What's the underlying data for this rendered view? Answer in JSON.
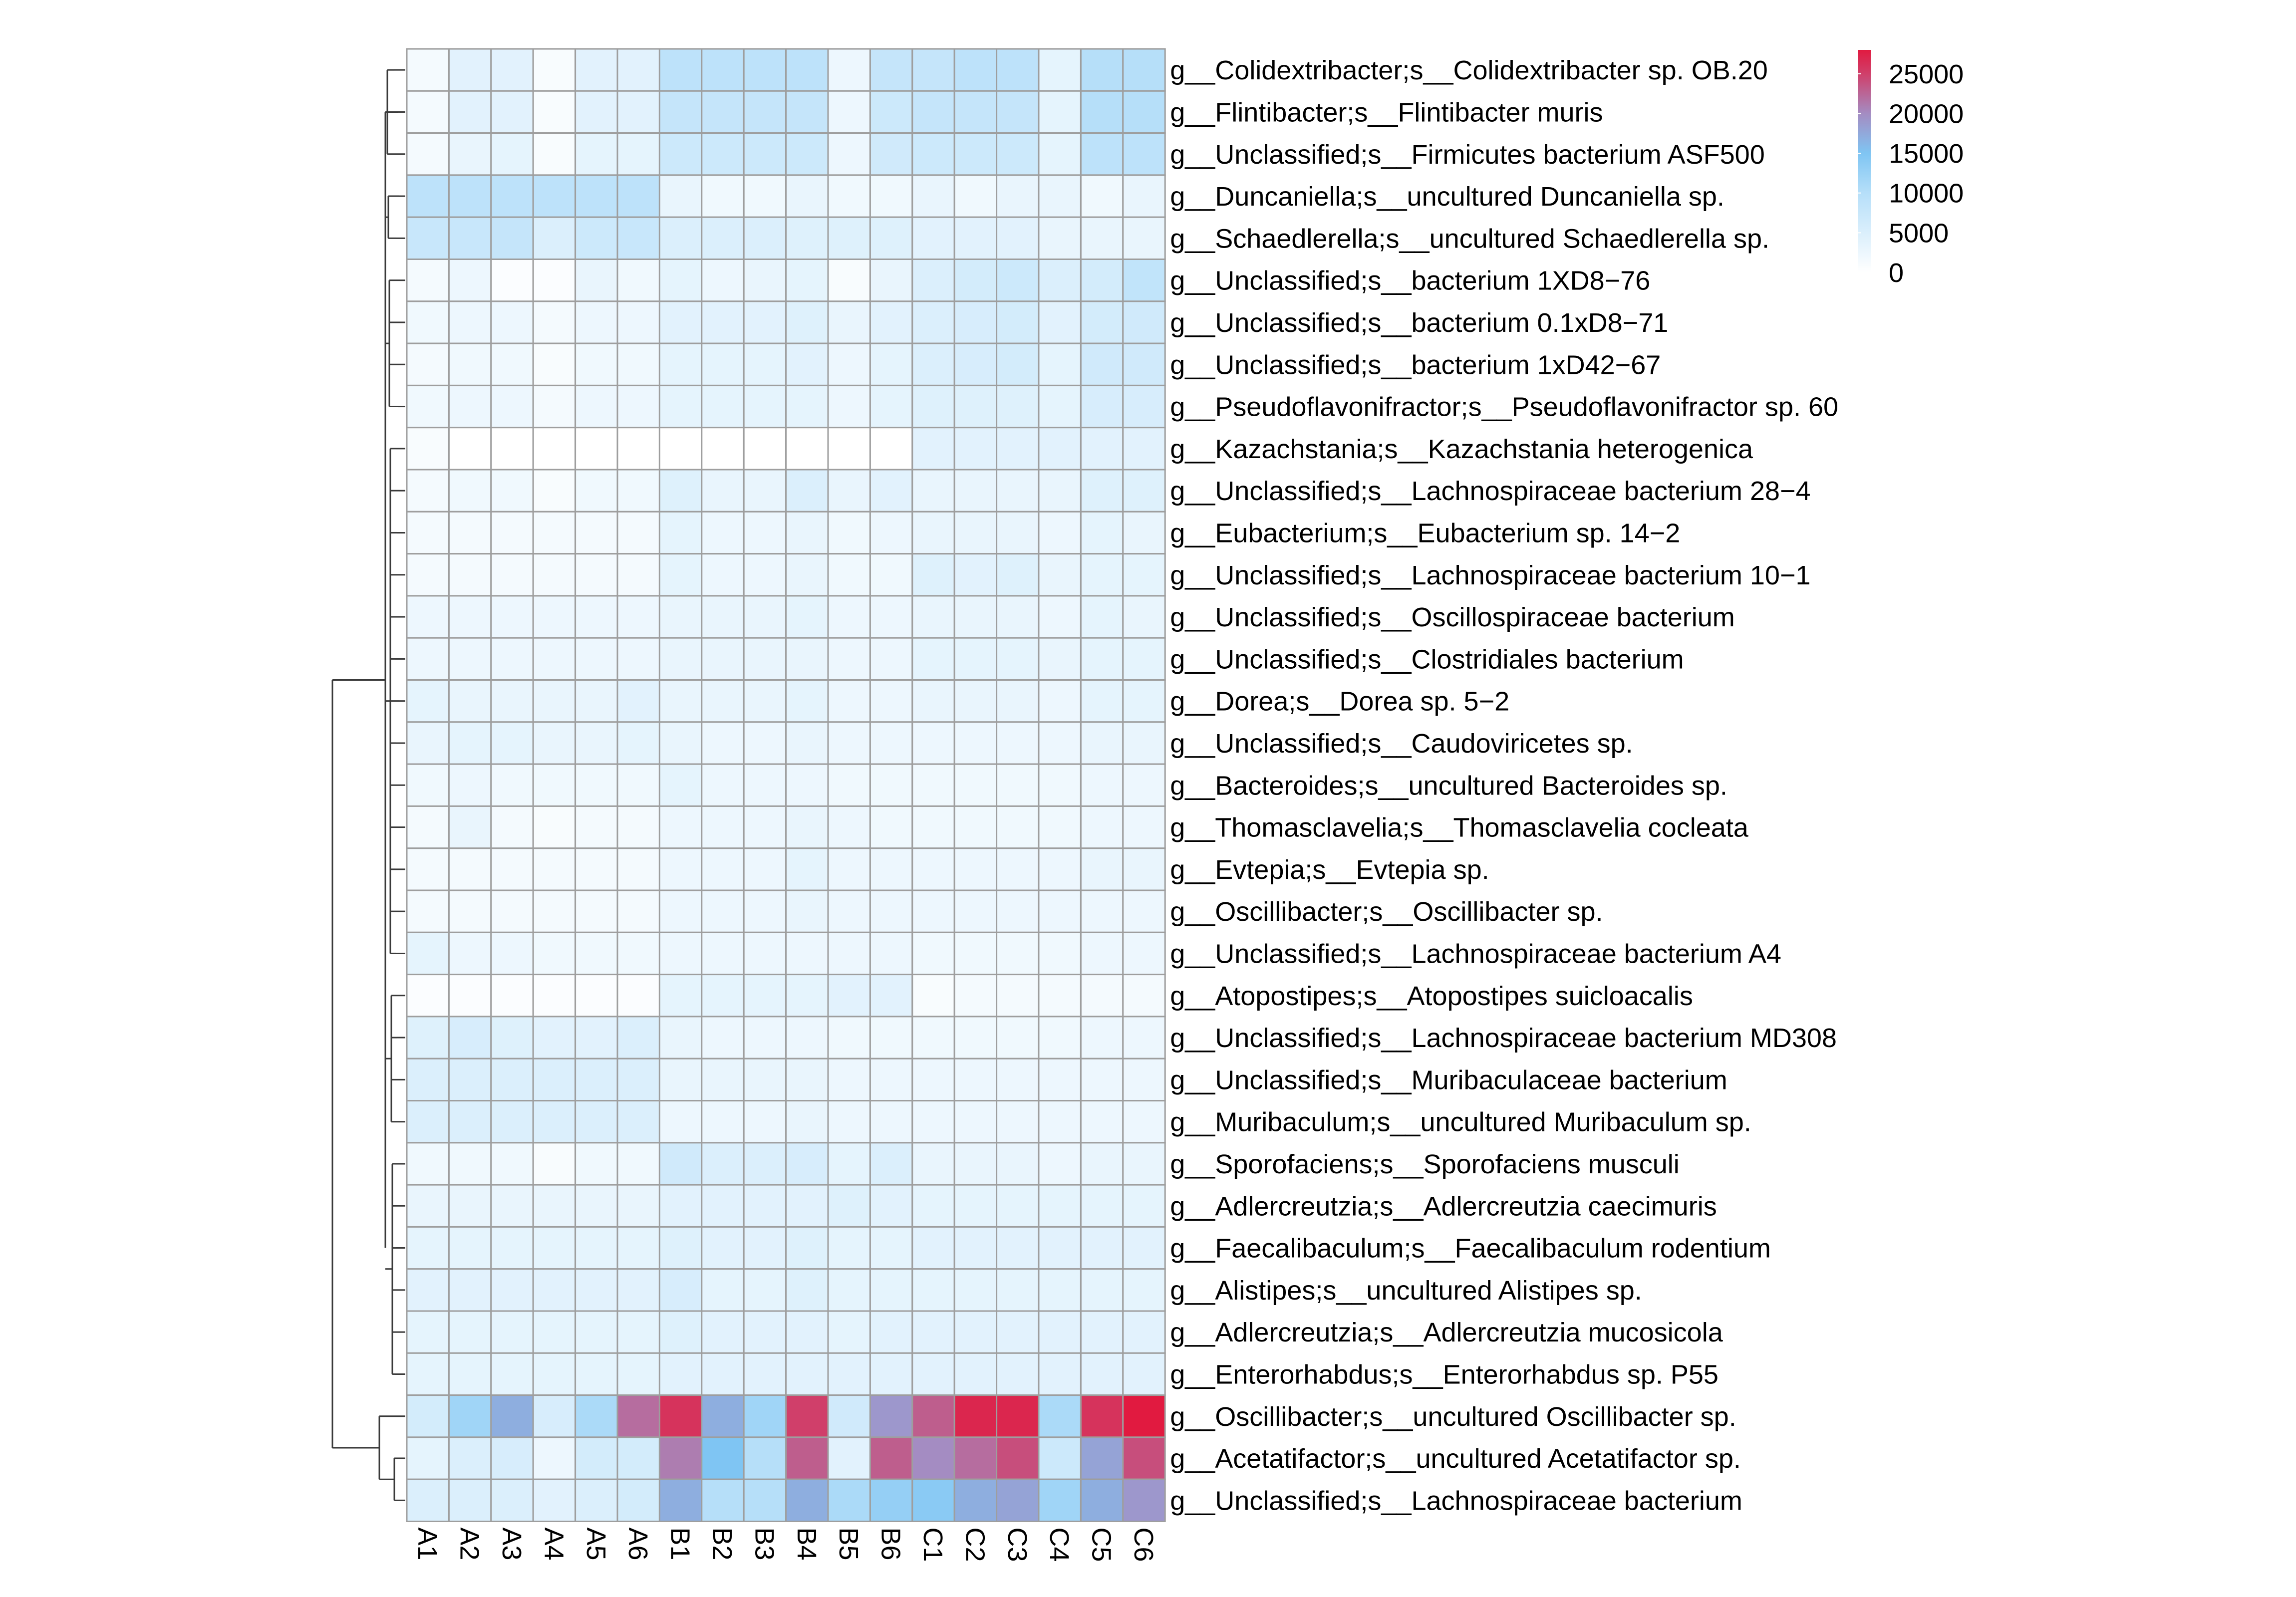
{
  "chart_data": {
    "type": "heatmap",
    "title": "",
    "xlabel": "",
    "ylabel": "",
    "columns": [
      "A1",
      "A2",
      "A3",
      "A4",
      "A5",
      "A6",
      "B1",
      "B2",
      "B3",
      "B4",
      "B5",
      "B6",
      "C1",
      "C2",
      "C3",
      "C4",
      "C5",
      "C6"
    ],
    "rows": [
      "g__Colidextribacter;s__Colidextribacter sp. OB.20",
      "g__Flintibacter;s__Flintibacter muris",
      "g__Unclassified;s__Firmicutes bacterium ASF500",
      "g__Duncaniella;s__uncultured Duncaniella sp.",
      "g__Schaedlerella;s__uncultured Schaedlerella sp.",
      "g__Unclassified;s__bacterium 1XD8−76",
      "g__Unclassified;s__bacterium 0.1xD8−71",
      "g__Unclassified;s__bacterium 1xD42−67",
      "g__Pseudoflavonifractor;s__Pseudoflavonifractor sp. 60",
      "g__Kazachstania;s__Kazachstania heterogenica",
      "g__Unclassified;s__Lachnospiraceae bacterium 28−4",
      "g__Eubacterium;s__Eubacterium sp. 14−2",
      "g__Unclassified;s__Lachnospiraceae bacterium 10−1",
      "g__Unclassified;s__Oscillospiraceae bacterium",
      "g__Unclassified;s__Clostridiales bacterium",
      "g__Dorea;s__Dorea sp. 5−2",
      "g__Unclassified;s__Caudoviricetes sp.",
      "g__Bacteroides;s__uncultured Bacteroides sp.",
      "g__Thomasclavelia;s__Thomasclavelia cocleata",
      "g__Evtepia;s__Evtepia sp.",
      "g__Oscillibacter;s__Oscillibacter sp.",
      "g__Unclassified;s__Lachnospiraceae bacterium A4",
      "g__Atopostipes;s__Atopostipes suicloacalis",
      "g__Unclassified;s__Lachnospiraceae bacterium MD308",
      "g__Unclassified;s__Muribaculaceae bacterium",
      "g__Muribaculum;s__uncultured Muribaculum sp.",
      "g__Sporofaciens;s__Sporofaciens musculi",
      "g__Adlercreutzia;s__Adlercreutzia caecimuris",
      "g__Faecalibaculum;s__Faecalibaculum rodentium",
      "g__Alistipes;s__uncultured Alistipes sp.",
      "g__Adlercreutzia;s__Adlercreutzia mucosicola",
      "g__Enterorhabdus;s__Enterorhabdus sp. P55",
      "g__Oscillibacter;s__uncultured Oscillibacter sp.",
      "g__Acetatifactor;s__uncultured Acetatifactor sp.",
      "g__Unclassified;s__Lachnospiraceae bacterium"
    ],
    "values": [
      [
        1500,
        4000,
        4000,
        1000,
        4000,
        4000,
        9000,
        9000,
        9000,
        9000,
        2500,
        8000,
        8000,
        9000,
        9000,
        3500,
        10000,
        10000
      ],
      [
        1500,
        4000,
        4000,
        1000,
        4000,
        4000,
        8000,
        8000,
        8000,
        8000,
        2500,
        7000,
        8000,
        8000,
        8000,
        3500,
        10000,
        10000
      ],
      [
        1500,
        3000,
        3500,
        1000,
        3500,
        3500,
        7000,
        7000,
        7000,
        7000,
        2500,
        6500,
        7000,
        7000,
        7000,
        3500,
        9000,
        9000
      ],
      [
        9000,
        9000,
        9000,
        9000,
        9000,
        9000,
        3000,
        2000,
        2000,
        3000,
        2000,
        2000,
        3000,
        2000,
        3000,
        3000,
        2000,
        3000
      ],
      [
        7500,
        7500,
        8000,
        5000,
        7000,
        7500,
        5000,
        5000,
        5000,
        4500,
        4500,
        4500,
        4000,
        4000,
        4000,
        3000,
        3000,
        3000
      ],
      [
        1500,
        2500,
        500,
        500,
        3000,
        2000,
        3500,
        2500,
        3000,
        3500,
        1000,
        3000,
        5000,
        6000,
        7000,
        5000,
        6000,
        8500
      ],
      [
        2000,
        2500,
        2500,
        1500,
        2500,
        2500,
        4000,
        4000,
        4000,
        4500,
        3000,
        4000,
        5000,
        5500,
        6000,
        4000,
        6000,
        6500
      ],
      [
        1500,
        2000,
        2000,
        1000,
        2000,
        2000,
        3500,
        3500,
        3500,
        4000,
        2500,
        3500,
        5000,
        5500,
        6000,
        3500,
        6500,
        6500
      ],
      [
        2000,
        2500,
        2500,
        1500,
        2500,
        2500,
        3500,
        3500,
        3500,
        3500,
        2500,
        3500,
        4500,
        4500,
        4500,
        3500,
        5500,
        5500
      ],
      [
        1000,
        0,
        0,
        0,
        0,
        0,
        0,
        0,
        0,
        0,
        0,
        0,
        4000,
        4000,
        4000,
        4000,
        4000,
        4000
      ],
      [
        1500,
        2000,
        2000,
        1000,
        2000,
        2000,
        4500,
        3000,
        3000,
        5000,
        3000,
        4000,
        3000,
        3000,
        3000,
        3000,
        4500,
        4500
      ],
      [
        1500,
        1500,
        1500,
        1500,
        1500,
        1500,
        3500,
        2500,
        2500,
        3000,
        2000,
        2500,
        3000,
        3000,
        3000,
        2500,
        3500,
        3000
      ],
      [
        1500,
        1500,
        1500,
        1500,
        1500,
        1500,
        3500,
        2500,
        2500,
        3000,
        2000,
        2000,
        4500,
        4000,
        4500,
        3000,
        3500,
        3500
      ],
      [
        2500,
        2500,
        2500,
        2500,
        2500,
        2500,
        3000,
        3000,
        3000,
        3500,
        2500,
        2500,
        3000,
        3000,
        3000,
        2500,
        3500,
        3000
      ],
      [
        2500,
        2500,
        2500,
        2500,
        2500,
        2500,
        3000,
        3000,
        3000,
        3000,
        2500,
        2500,
        3500,
        3500,
        3500,
        3000,
        3500,
        3500
      ],
      [
        3500,
        3000,
        3000,
        3000,
        3000,
        4000,
        3000,
        3000,
        3000,
        3500,
        2500,
        2500,
        3000,
        3000,
        3000,
        2500,
        3500,
        3500
      ],
      [
        3000,
        3500,
        3500,
        3000,
        3000,
        3500,
        3000,
        2500,
        2500,
        3000,
        2500,
        2500,
        2500,
        2500,
        2500,
        2500,
        3000,
        3000
      ],
      [
        2000,
        2500,
        2000,
        2000,
        2000,
        2000,
        3500,
        2500,
        2500,
        2500,
        2000,
        2000,
        2000,
        2000,
        2000,
        2000,
        2500,
        2500
      ],
      [
        1500,
        3000,
        1500,
        1000,
        1500,
        1500,
        2500,
        2500,
        2500,
        3000,
        2500,
        2000,
        2000,
        2000,
        2000,
        2000,
        2500,
        2500
      ],
      [
        1500,
        1500,
        1500,
        1500,
        1500,
        1500,
        2500,
        2500,
        2500,
        3500,
        2500,
        2500,
        2500,
        2500,
        2500,
        2500,
        3000,
        3000
      ],
      [
        1500,
        1500,
        1500,
        1500,
        1500,
        1500,
        2500,
        2500,
        2500,
        3000,
        2500,
        2500,
        2500,
        2500,
        2500,
        2500,
        2500,
        2500
      ],
      [
        3500,
        2500,
        2500,
        2000,
        2000,
        2000,
        2500,
        2500,
        2500,
        2500,
        2500,
        2500,
        2000,
        2000,
        2000,
        2000,
        2500,
        2500
      ],
      [
        500,
        500,
        500,
        500,
        500,
        500,
        3500,
        3500,
        3500,
        3500,
        4000,
        4000,
        1000,
        1500,
        1500,
        1500,
        1500,
        1500
      ],
      [
        4500,
        5500,
        4500,
        4000,
        4000,
        5000,
        3000,
        2500,
        2500,
        2500,
        2000,
        2000,
        2000,
        2000,
        2000,
        2000,
        2500,
        2500
      ],
      [
        5000,
        5000,
        5000,
        5000,
        5000,
        5000,
        3000,
        3000,
        3000,
        3000,
        2500,
        2500,
        2500,
        2500,
        2500,
        2500,
        2500,
        2500
      ],
      [
        5000,
        5000,
        5000,
        5000,
        5000,
        5000,
        2500,
        2500,
        2500,
        3000,
        2500,
        2500,
        2500,
        2500,
        2500,
        2500,
        2500,
        2500
      ],
      [
        2000,
        2000,
        2000,
        1000,
        2000,
        2000,
        6500,
        5000,
        5000,
        5500,
        3500,
        5000,
        3000,
        3000,
        3000,
        2500,
        3000,
        3000
      ],
      [
        3000,
        3000,
        3000,
        3000,
        3000,
        3000,
        4000,
        4000,
        4000,
        4000,
        4500,
        4000,
        3500,
        3500,
        3500,
        3500,
        3500,
        3500
      ],
      [
        3500,
        3500,
        3500,
        3500,
        3500,
        3500,
        4500,
        4000,
        4000,
        4500,
        3500,
        3500,
        4000,
        4000,
        4000,
        4000,
        4000,
        4000
      ],
      [
        4000,
        4000,
        4000,
        4000,
        4000,
        4000,
        5500,
        3500,
        3500,
        4500,
        3500,
        3500,
        3500,
        3500,
        3500,
        3500,
        3500,
        3500
      ],
      [
        3500,
        3500,
        3500,
        3500,
        3500,
        3500,
        4500,
        4000,
        4000,
        4000,
        3500,
        4000,
        4000,
        4000,
        4000,
        4000,
        4000,
        4000
      ],
      [
        3500,
        3500,
        3500,
        3500,
        3500,
        3500,
        4000,
        4000,
        4000,
        4000,
        4000,
        4000,
        4000,
        4000,
        4000,
        4000,
        4000,
        4000
      ],
      [
        6000,
        12000,
        17000,
        5500,
        11000,
        22000,
        26000,
        17000,
        12000,
        25000,
        6500,
        19000,
        23000,
        27000,
        27000,
        11000,
        26000,
        28000
      ],
      [
        3500,
        5000,
        5500,
        2500,
        6000,
        6000,
        21000,
        15000,
        10000,
        23000,
        4000,
        23000,
        20000,
        22000,
        24000,
        7000,
        18000,
        24000
      ],
      [
        5000,
        5000,
        5000,
        4000,
        5000,
        6000,
        17000,
        10000,
        10000,
        17000,
        11000,
        13000,
        14000,
        17000,
        18000,
        12000,
        17000,
        19000
      ]
    ],
    "color_scale": {
      "stops": [
        {
          "value": 0,
          "color": "#ffffff"
        },
        {
          "value": 10000,
          "color": "#b6dff9"
        },
        {
          "value": 15000,
          "color": "#7fc5f3"
        },
        {
          "value": 20000,
          "color": "#a48cc2"
        },
        {
          "value": 25000,
          "color": "#d03f6a"
        },
        {
          "value": 28000,
          "color": "#e11a40"
        }
      ]
    },
    "legend": {
      "position": "top-right",
      "min": 0,
      "max": 28000,
      "ticks": [
        0,
        5000,
        10000,
        15000,
        20000,
        25000
      ]
    },
    "row_dendrogram": true
  }
}
